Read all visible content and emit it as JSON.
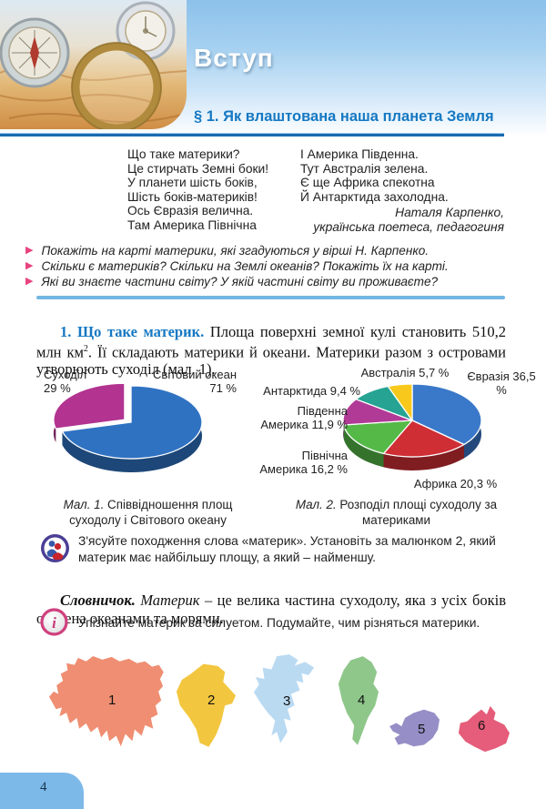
{
  "page": {
    "number": "4"
  },
  "header": {
    "section_title": "Вступ",
    "lesson_title": "§ 1. Як влаштована наша планета Земля"
  },
  "poem": {
    "left": [
      "Що таке материки?",
      "Це стирчать Земні боки!",
      "У планети шість боків,",
      "Шість боків-материків!",
      "Ось Євразія велична.",
      "Там Америка Північна"
    ],
    "right": [
      "І Америка Південна.",
      "Тут Австралія зелена.",
      "Є ще Африка спекотна",
      "Й Антарктида захолодна."
    ],
    "author": "Наталя Карпенко,",
    "author_role": "українська поетеса, педагогиня"
  },
  "questions": [
    "Покажіть на карті материки, які згадуються у вірші Н. Карпенко.",
    "Скільки є материків? Скільки на Землі океанів? Покажіть їх на карті.",
    "Які ви знаєте частини світу? У якій частині світу ви проживаєте?"
  ],
  "intro": {
    "lead": "1. Що таке материк.",
    "text_before_sup": " Площа поверхні земної кулі становить 510,2 млн км",
    "sup": "2",
    "text_after_sup": ". Її складають материки й океани. Материки разом з островами утворюють суходіл (мал. 1)."
  },
  "chart_data": [
    {
      "type": "pie",
      "style": "3d-pie",
      "figure": "Мал. 1",
      "title": "Співвідношення площ суходолу і Світового океану",
      "categories": [
        "Світовий океан",
        "Суходіл"
      ],
      "values": [
        71,
        29
      ],
      "unit": "%",
      "colors": [
        "#2f72c2",
        "#b23390"
      ],
      "exploded_slice": "Суходіл",
      "labels_display": [
        "Суходіл",
        "29 %",
        "Світовий океан",
        "71 %"
      ]
    },
    {
      "type": "pie",
      "style": "3d-pie",
      "figure": "Мал. 2",
      "title": "Розподіл площі суходолу за материками",
      "categories": [
        "Євразія",
        "Африка",
        "Північна Америка",
        "Південна Америка",
        "Антарктида",
        "Австралія"
      ],
      "values": [
        36.5,
        20.3,
        16.2,
        11.9,
        9.4,
        5.7
      ],
      "unit": "%",
      "colors": [
        "#3a78c9",
        "#cf2e35",
        "#55b948",
        "#b13a97",
        "#26a392",
        "#f8c81c"
      ],
      "labels_display": [
        "Австралія 5,7 %",
        "Євразія 36,5 %",
        "Антарктида 9,4 %",
        "Південна Америка 11,9 %",
        "Північна Америка 16,2 %",
        "Африка 20,3 %"
      ]
    }
  ],
  "figures": {
    "fig1": {
      "prefix": "Мал. 1.",
      "text": " Співвідношення площ суходолу і Світового океану"
    },
    "fig2": {
      "prefix": "Мал. 2.",
      "text": " Розподіл площі суходолу за материками"
    }
  },
  "tasks": {
    "group": "З'ясуйте походження слова  «материк». Установіть за малюнком 2, який материк має найбільшу площу, а який – найменшу.",
    "info": "Упізнайте материк за силуетом. Подумайте, чим різняться материки."
  },
  "dictionary": {
    "lead": "Словничок.",
    "term": " Материк",
    "definition": " – це велика частина суходолу, яка з усіх боків оточена океанами та морями."
  },
  "continents": [
    {
      "number": "1",
      "name": "Євразія",
      "color": "#ef8e72"
    },
    {
      "number": "2",
      "name": "Африка",
      "color": "#f2c63e"
    },
    {
      "number": "3",
      "name": "Північна Америка",
      "color": "#badaf2"
    },
    {
      "number": "4",
      "name": "Південна Америка",
      "color": "#8fc78b"
    },
    {
      "number": "5",
      "name": "Антарктида",
      "color": "#968ec6"
    },
    {
      "number": "6",
      "name": "Австралія",
      "color": "#e55d7a"
    }
  ]
}
